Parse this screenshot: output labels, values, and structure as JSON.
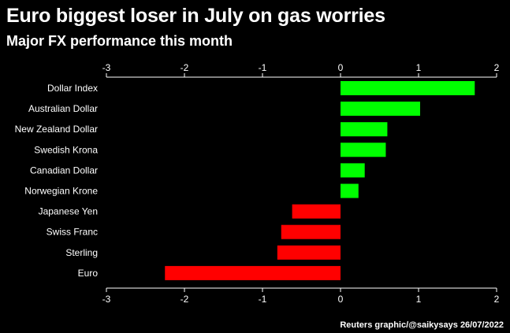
{
  "header": {
    "title": "Euro biggest loser in July on gas worries",
    "subtitle": "Major FX performance this month"
  },
  "footer": {
    "source": "Reuters graphic/@saikysays 26/07/2022"
  },
  "colors": {
    "background": "#000000",
    "positive": "#00ff00",
    "negative": "#ff0000",
    "text": "#ffffff"
  },
  "chart_data": {
    "type": "bar",
    "orientation": "horizontal",
    "title": "Euro biggest loser in July on gas worries",
    "subtitle": "Major FX performance this month",
    "categories": [
      "Dollar Index",
      "Australian Dollar",
      "New Zealand Dollar",
      "Swedish Krona",
      "Canadian Dollar",
      "Norwegian Krone",
      "Japanese Yen",
      "Swiss Franc",
      "Sterling",
      "Euro"
    ],
    "values": [
      1.72,
      1.02,
      0.6,
      0.58,
      0.31,
      0.23,
      -0.62,
      -0.76,
      -0.81,
      -2.25
    ],
    "xlim": [
      -3,
      2
    ],
    "xticks": [
      -3,
      -2,
      -1,
      0,
      1,
      2
    ],
    "xtick_labels": [
      "-3",
      "-2",
      "-1",
      "0",
      "1",
      "2"
    ],
    "axis_position": "top and bottom",
    "grid": false,
    "legend": "none"
  }
}
